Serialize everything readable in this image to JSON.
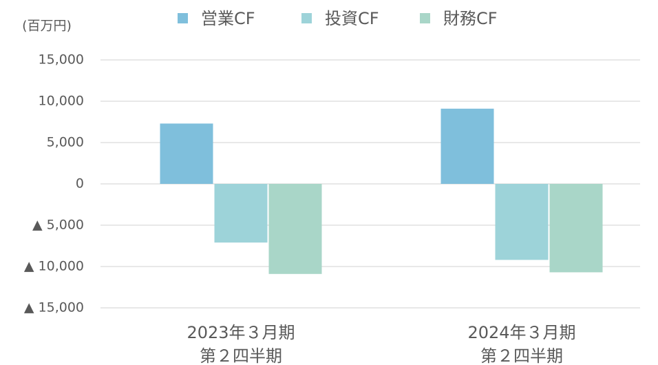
{
  "chart_data": {
    "type": "bar",
    "y_axis_label": "(百万円)",
    "categories": [
      [
        "2023年３月期",
        "第２四半期"
      ],
      [
        "2024年３月期",
        "第２四半期"
      ]
    ],
    "series": [
      {
        "name": "営業CF",
        "color": "#7fbfdc",
        "values": [
          7300,
          9100
        ]
      },
      {
        "name": "投資CF",
        "color": "#9dd3d9",
        "values": [
          -7100,
          -9200
        ]
      },
      {
        "name": "財務CF",
        "color": "#a9d6c8",
        "values": [
          -10900,
          -10700
        ]
      }
    ],
    "ylim": [
      -15000,
      15000
    ],
    "yticks": [
      {
        "value": 15000,
        "label": "15,000"
      },
      {
        "value": 10000,
        "label": "10,000"
      },
      {
        "value": 5000,
        "label": "5,000"
      },
      0,
      {
        "value": -5000,
        "label": "▲ 5,000"
      },
      {
        "value": -10000,
        "label": "▲ 10,000"
      },
      {
        "value": -15000,
        "label": "▲ 15,000"
      }
    ],
    "grid": true,
    "legend": "top"
  }
}
